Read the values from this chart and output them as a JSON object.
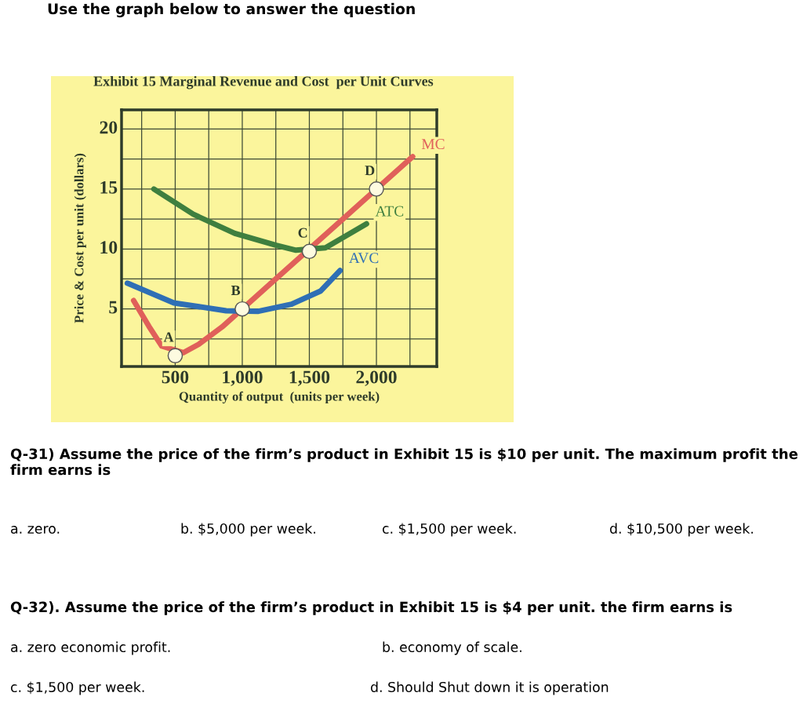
{
  "chart_data": {
    "type": "line",
    "title": "Exhibit 15 Marginal Revenue and Cost  per Unit Curves",
    "xlabel": "Quantity of output  (units per week)",
    "ylabel": "Price & Cost per unit (dollars)",
    "xlim": [
      100,
      2450
    ],
    "ylim": [
      0.2,
      21.6
    ],
    "xticks": [
      {
        "value": 250,
        "label": null
      },
      500,
      {
        "value": 750,
        "label": null
      },
      {
        "value": 1000,
        "label": "1,000"
      },
      {
        "value": 1250,
        "label": null
      },
      {
        "value": 1500,
        "label": "1,500"
      },
      {
        "value": 1750,
        "label": null
      },
      {
        "value": 2000,
        "label": "2,000"
      },
      {
        "value": 2250,
        "label": null
      }
    ],
    "yticks": [
      {
        "value": 2.5,
        "label": null
      },
      5,
      {
        "value": 7.5,
        "label": null
      },
      10,
      {
        "value": 12.5,
        "label": null
      },
      15,
      {
        "value": 17.5,
        "label": null
      },
      20
    ],
    "grid": true,
    "legend": false,
    "marker": "none",
    "line_style": "solid",
    "series": [
      {
        "name": "MC",
        "color": "#e0605a",
        "x": [
          190,
          304,
          400,
          560,
          675,
          850,
          1250,
          1750,
          2270
        ],
        "values": [
          5.7,
          3.55,
          1.9,
          1.35,
          2.05,
          3.5,
          7.5,
          12.5,
          17.7
        ]
      },
      {
        "name": "ATC",
        "color": "#3f7f3f",
        "x": [
          341,
          634,
          944,
          1254,
          1400,
          1620,
          1926
        ],
        "values": [
          15.0,
          12.9,
          11.3,
          10.3,
          9.9,
          10.1,
          12.1
        ]
      },
      {
        "name": "AVC",
        "color": "#2f6fb5",
        "x": [
          143,
          490,
          880,
          1120,
          1367,
          1585,
          1729
        ],
        "values": [
          7.15,
          5.5,
          4.85,
          4.8,
          5.4,
          6.5,
          8.2
        ]
      },
      {
        "type": "scatter",
        "color": "#fdfbe0",
        "marker": "circle",
        "x": [
          500,
          1000,
          1500,
          2000
        ],
        "values": [
          1.1,
          5.0,
          9.8,
          15.0
        ]
      }
    ],
    "annotations": [
      {
        "text": "A",
        "x": 500,
        "y": 1.1
      },
      {
        "text": "B",
        "x": 1000,
        "y": 5.0
      },
      {
        "text": "C",
        "x": 1500,
        "y": 9.8
      },
      {
        "text": "D",
        "x": 2000,
        "y": 15.0
      },
      "Use the graph below to answer the question",
      "Q-31) Assume the price of the firm’s product in Exhibit 15 is $10 per unit. The maximum profit the firm earns is",
      "a. zero.",
      "b. $5,000 per week.",
      "c. $1,500 per week.",
      "d. $10,500 per week.",
      "Q-32). Assume the price of the firm’s product in Exhibit 15 is $4 per unit. the firm earns is",
      "a. zero economic profit.",
      "b. economy of scale.",
      "c. $1,500 per week.",
      "d. Should Shut down it is operation"
    ]
  }
}
